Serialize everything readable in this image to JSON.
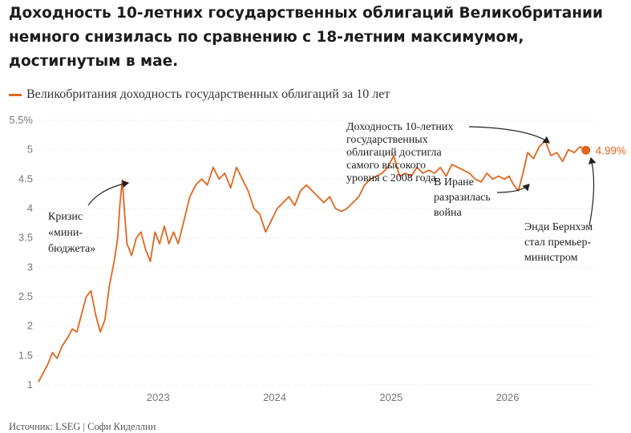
{
  "title": "Доходность 10-летних государственных облигаций Великобритании немного снизилась по сравнению с 18-летним максимумом, достигнутым в мае.",
  "source": "Источник: LSEG | Софи Киделлин",
  "colors": {
    "series": "#e0661f",
    "grid": "#d9d9d9",
    "text": "#1c1c1c",
    "axis_labels": "#777777"
  },
  "chart_data": {
    "type": "line",
    "title": "Доходность 10-летних государственных облигаций Великобритании немного снизилась по сравнению с 18-летним максимумом, достигнутым в мае.",
    "xlabel": "",
    "ylabel": "",
    "xlim": [
      2022.0,
      2026.75
    ],
    "ylim": [
      1,
      5.5
    ],
    "y_ticks": [
      "5.5%",
      "5",
      "4.5",
      "4",
      "3.5",
      "3",
      "2.5",
      "2",
      "1.5",
      "1"
    ],
    "y_tick_values": [
      5.5,
      5,
      4.5,
      4,
      3.5,
      3,
      2.5,
      2,
      1.5,
      1
    ],
    "x_ticks": [
      "2023",
      "2024",
      "2025",
      "2026"
    ],
    "x_tick_values": [
      2023,
      2024,
      2025,
      2026
    ],
    "grid": true,
    "legend": "top-left",
    "series": [
      {
        "name": "Великобритания доходность государственных облигаций за 10 лет",
        "x": [
          2022.0,
          2022.04,
          2022.08,
          2022.12,
          2022.16,
          2022.2,
          2022.25,
          2022.29,
          2022.33,
          2022.37,
          2022.41,
          2022.45,
          2022.49,
          2022.53,
          2022.57,
          2022.61,
          2022.65,
          2022.68,
          2022.7,
          2022.72,
          2022.74,
          2022.76,
          2022.8,
          2022.84,
          2022.88,
          2022.92,
          2022.96,
          2023.0,
          2023.04,
          2023.08,
          2023.12,
          2023.16,
          2023.2,
          2023.25,
          2023.3,
          2023.35,
          2023.4,
          2023.45,
          2023.5,
          2023.55,
          2023.6,
          2023.65,
          2023.7,
          2023.75,
          2023.8,
          2023.85,
          2023.9,
          2023.95,
          2024.0,
          2024.05,
          2024.1,
          2024.15,
          2024.2,
          2024.25,
          2024.3,
          2024.35,
          2024.4,
          2024.45,
          2024.5,
          2024.55,
          2024.6,
          2024.65,
          2024.7,
          2024.75,
          2024.8,
          2024.85,
          2024.9,
          2024.95,
          2025.0,
          2025.05,
          2025.1,
          2025.15,
          2025.2,
          2025.25,
          2025.3,
          2025.35,
          2025.4,
          2025.45,
          2025.5,
          2025.55,
          2025.6,
          2025.65,
          2025.7,
          2025.75,
          2025.8,
          2025.85,
          2025.9,
          2025.95,
          2026.0,
          2026.04,
          2026.08,
          2026.12,
          2026.16,
          2026.2,
          2026.25,
          2026.3,
          2026.35,
          2026.4,
          2026.45,
          2026.5,
          2026.55,
          2026.6,
          2026.65,
          2026.7
        ],
        "values": [
          1.05,
          1.2,
          1.35,
          1.55,
          1.45,
          1.65,
          1.8,
          1.95,
          1.9,
          2.2,
          2.5,
          2.6,
          2.2,
          1.9,
          2.1,
          2.7,
          3.1,
          3.5,
          4.1,
          4.48,
          3.9,
          3.4,
          3.2,
          3.5,
          3.6,
          3.3,
          3.1,
          3.6,
          3.4,
          3.7,
          3.4,
          3.6,
          3.4,
          3.8,
          4.2,
          4.4,
          4.5,
          4.4,
          4.7,
          4.5,
          4.6,
          4.35,
          4.7,
          4.5,
          4.3,
          4.0,
          3.9,
          3.6,
          3.8,
          4.0,
          4.1,
          4.2,
          4.05,
          4.3,
          4.4,
          4.3,
          4.2,
          4.1,
          4.2,
          4.0,
          3.95,
          4.0,
          4.1,
          4.2,
          4.4,
          4.5,
          4.55,
          4.6,
          4.7,
          4.9,
          4.55,
          4.6,
          4.55,
          4.7,
          4.6,
          4.65,
          4.6,
          4.7,
          4.55,
          4.75,
          4.7,
          4.65,
          4.6,
          4.5,
          4.45,
          4.6,
          4.5,
          4.55,
          4.5,
          4.55,
          4.4,
          4.3,
          4.6,
          4.95,
          4.85,
          5.05,
          5.15,
          4.9,
          4.95,
          4.8,
          5.0,
          4.95,
          5.05,
          4.99
        ]
      }
    ],
    "end_label": "4.99%",
    "annotations": [
      {
        "id": "mini",
        "lines": [
          "Кризис",
          "«мини-",
          "бюджета»"
        ]
      },
      {
        "id": "peak",
        "lines": [
          "Доходность 10-летних",
          "государственных",
          "облигаций достигла",
          "самого высокого",
          "уровня с 2008 года."
        ]
      },
      {
        "id": "iran",
        "lines": [
          "В Иране",
          "разразилась",
          "война"
        ]
      },
      {
        "id": "pm",
        "lines": [
          "Энди Бернхэм",
          "стал премьер-",
          "министром"
        ]
      }
    ]
  }
}
